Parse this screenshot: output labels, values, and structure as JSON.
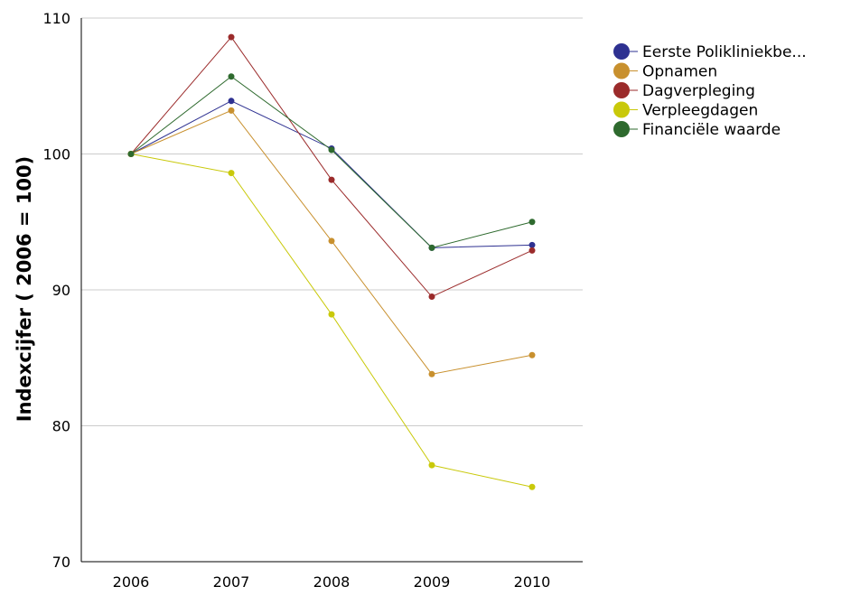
{
  "chart_data": {
    "type": "line",
    "title": "",
    "xlabel": "",
    "ylabel": "Indexcijfer ( 2006 = 100)",
    "categories": [
      "2006",
      "2007",
      "2008",
      "2009",
      "2010"
    ],
    "ylim": [
      70,
      110
    ],
    "yticks": [
      "70",
      "80",
      "90",
      "100",
      "110"
    ],
    "grid": "horizontal",
    "legend": "top-right",
    "series": [
      {
        "name": "Eerste Polikliniekbe...",
        "color": "#2e3191",
        "values": [
          100,
          103.9,
          100.4,
          93.1,
          93.3
        ]
      },
      {
        "name": "Opnamen",
        "color": "#c8902e",
        "values": [
          100,
          103.2,
          93.6,
          83.8,
          85.2
        ]
      },
      {
        "name": "Dagverpleging",
        "color": "#9b2b2b",
        "values": [
          100,
          108.6,
          98.1,
          89.5,
          92.9
        ]
      },
      {
        "name": "Verpleegdagen",
        "color": "#c9c90a",
        "values": [
          100,
          98.6,
          88.2,
          77.1,
          75.5
        ]
      },
      {
        "name": "Financiële waarde",
        "color": "#2e6a2e",
        "values": [
          100,
          105.7,
          100.3,
          93.1,
          95.0
        ]
      }
    ]
  }
}
